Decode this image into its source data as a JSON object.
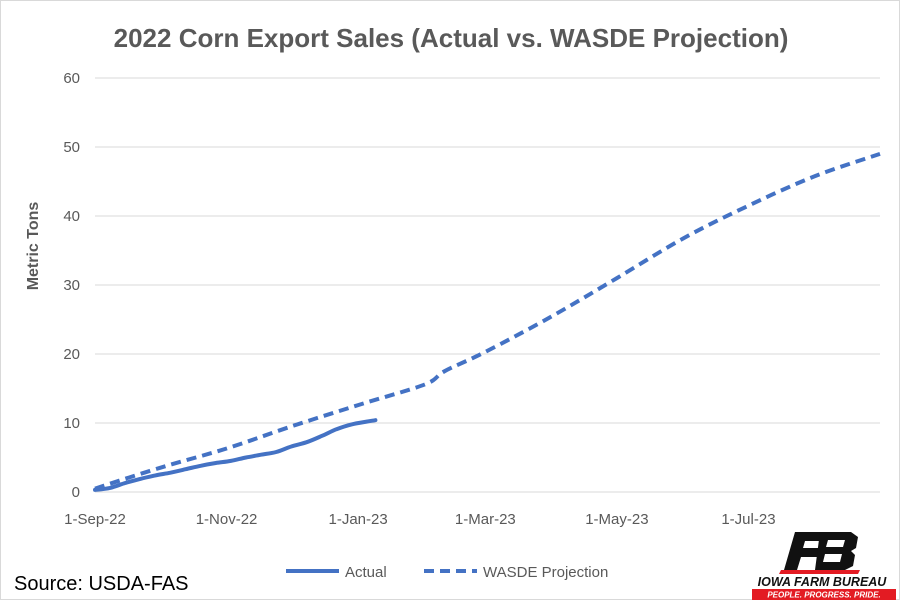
{
  "chart_data": {
    "type": "line",
    "title": "2022 Corn Export Sales (Actual vs. WASDE Projection)",
    "xlabel": "",
    "ylabel": "Metric Tons",
    "ylim": [
      0,
      60
    ],
    "yticks": [
      0,
      10,
      20,
      30,
      40,
      50,
      60
    ],
    "xlim": [
      "2022-09-01",
      "2023-08-31"
    ],
    "xticks": [
      {
        "date": "2022-09-01",
        "label": "1-Sep-22"
      },
      {
        "date": "2022-11-01",
        "label": "1-Nov-22"
      },
      {
        "date": "2023-01-01",
        "label": "1-Jan-23"
      },
      {
        "date": "2023-03-01",
        "label": "1-Mar-23"
      },
      {
        "date": "2023-05-01",
        "label": "1-May-23"
      },
      {
        "date": "2023-07-01",
        "label": "1-Jul-23"
      }
    ],
    "grid": "horizontal",
    "legend": "bottom",
    "series": [
      {
        "name": "Actual",
        "style": "solid",
        "color": "#4472c4",
        "points": [
          [
            "2022-09-01",
            0.3
          ],
          [
            "2022-09-08",
            0.6
          ],
          [
            "2022-09-15",
            1.3
          ],
          [
            "2022-09-22",
            1.9
          ],
          [
            "2022-09-29",
            2.4
          ],
          [
            "2022-10-06",
            2.8
          ],
          [
            "2022-10-13",
            3.3
          ],
          [
            "2022-10-20",
            3.8
          ],
          [
            "2022-10-27",
            4.2
          ],
          [
            "2022-11-03",
            4.5
          ],
          [
            "2022-11-10",
            5.0
          ],
          [
            "2022-11-17",
            5.4
          ],
          [
            "2022-11-24",
            5.8
          ],
          [
            "2022-12-01",
            6.6
          ],
          [
            "2022-12-08",
            7.2
          ],
          [
            "2022-12-15",
            8.1
          ],
          [
            "2022-12-22",
            9.1
          ],
          [
            "2022-12-29",
            9.8
          ],
          [
            "2023-01-05",
            10.2
          ],
          [
            "2023-01-09",
            10.4
          ]
        ]
      },
      {
        "name": "WASDE Projection",
        "style": "dashed",
        "color": "#4472c4",
        "points": [
          [
            "2022-09-01",
            0.5
          ],
          [
            "2022-10-01",
            3.5
          ],
          [
            "2022-11-01",
            6.3
          ],
          [
            "2022-12-01",
            9.5
          ],
          [
            "2023-01-01",
            12.6
          ],
          [
            "2023-02-01",
            15.6
          ],
          [
            "2023-02-10",
            17.5
          ],
          [
            "2023-03-01",
            20.3
          ],
          [
            "2023-04-01",
            25.5
          ],
          [
            "2023-05-01",
            31.0
          ],
          [
            "2023-06-01",
            36.8
          ],
          [
            "2023-07-01",
            41.5
          ],
          [
            "2023-08-01",
            45.8
          ],
          [
            "2023-08-31",
            49.0
          ]
        ]
      }
    ]
  },
  "footer": {
    "source": "Source: USDA-FAS"
  },
  "logo": {
    "name": "IOWA FARM BUREAU",
    "tagline": "PEOPLE. PROGRESS. PRIDE.",
    "accent_color": "#e31b23"
  }
}
